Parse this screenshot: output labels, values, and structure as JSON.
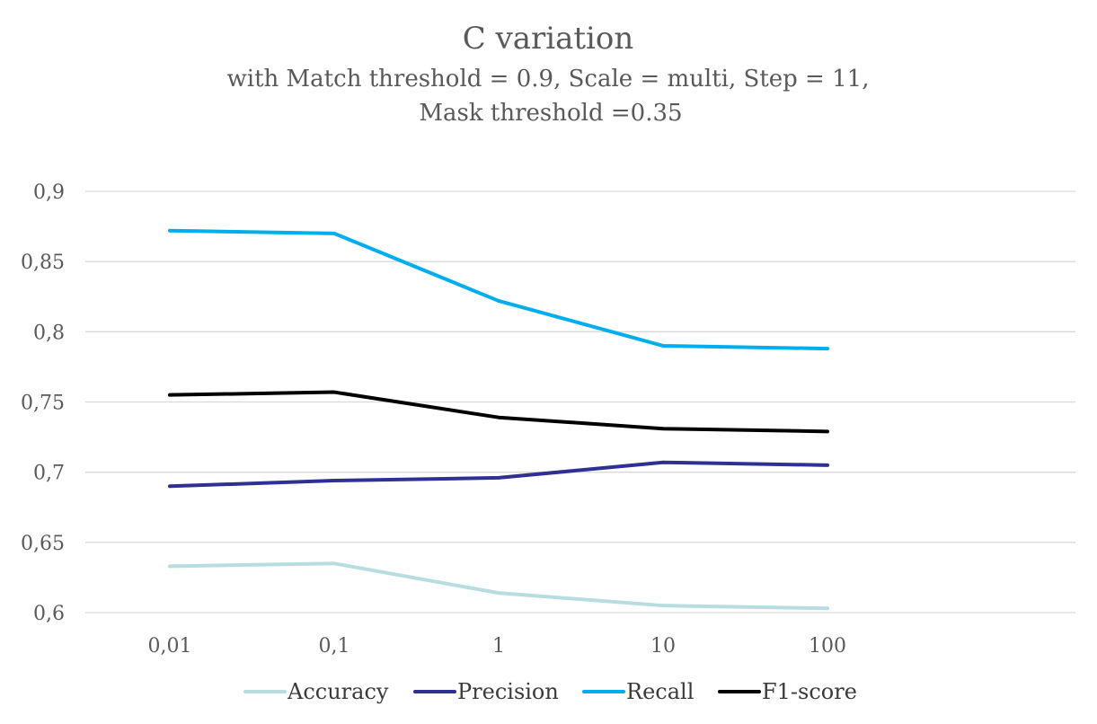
{
  "chart_data": {
    "type": "line",
    "title": "C variation",
    "subtitle_lines": [
      "with Match threshold = 0.9, Scale = multi, Step = 11,",
      "Mask threshold =0.35"
    ],
    "categories": [
      "0,01",
      "0,1",
      "1",
      "10",
      "100"
    ],
    "ylim": [
      0.6,
      0.9
    ],
    "ytick_values": [
      0.6,
      0.65,
      0.7,
      0.75,
      0.8,
      0.85,
      0.9
    ],
    "ytick_labels": [
      "0,6",
      "0,65",
      "0,7",
      "0,75",
      "0,8",
      "0,85",
      "0,9"
    ],
    "grid": true,
    "legend_position": "bottom",
    "series": [
      {
        "name": "Accuracy",
        "color": "#b7dde0",
        "values": [
          0.633,
          0.635,
          0.614,
          0.605,
          0.603
        ]
      },
      {
        "name": "Precision",
        "color": "#2e3192",
        "values": [
          0.69,
          0.694,
          0.696,
          0.707,
          0.705
        ]
      },
      {
        "name": "Recall",
        "color": "#00aeef",
        "values": [
          0.872,
          0.87,
          0.822,
          0.79,
          0.788
        ]
      },
      {
        "name": "F1-score",
        "color": "#000000",
        "values": [
          0.755,
          0.757,
          0.739,
          0.731,
          0.729
        ]
      }
    ]
  }
}
